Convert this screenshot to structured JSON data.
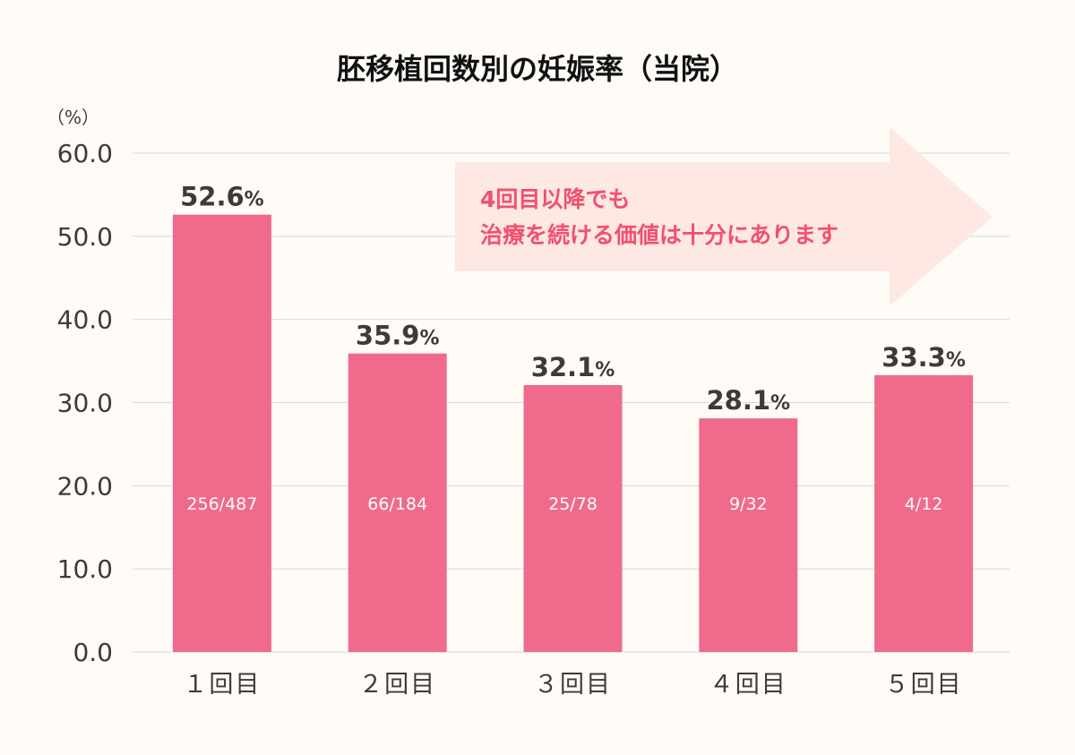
{
  "chart_data": {
    "type": "bar",
    "title": "胚移植回数別の妊娠率（当院）",
    "ylabel": "（%）",
    "ylim": [
      0,
      60
    ],
    "yticks": [
      "0.0",
      "10.0",
      "20.0",
      "30.0",
      "40.0",
      "50.0",
      "60.0"
    ],
    "grid": true,
    "categories": [
      "１回目",
      "２回目",
      "３回目",
      "４回目",
      "５回目"
    ],
    "values": [
      52.6,
      35.9,
      32.1,
      28.1,
      33.3
    ],
    "value_labels": [
      "52.6",
      "35.9",
      "32.1",
      "28.1",
      "33.3"
    ],
    "value_unit": "%",
    "counts": [
      "256/487",
      "66/184",
      "25/78",
      "9/32",
      "4/12"
    ],
    "annotation": {
      "line1": "4回目以降でも",
      "line2": "治療を続ける価値は十分にあります"
    },
    "colors": {
      "bar": "#f06a8c",
      "arrow": "#fde8e3",
      "annotation_text": "#f2506e",
      "text": "#3f3a36",
      "grid": "#d9d9d9",
      "background": "#fffcf8"
    }
  }
}
